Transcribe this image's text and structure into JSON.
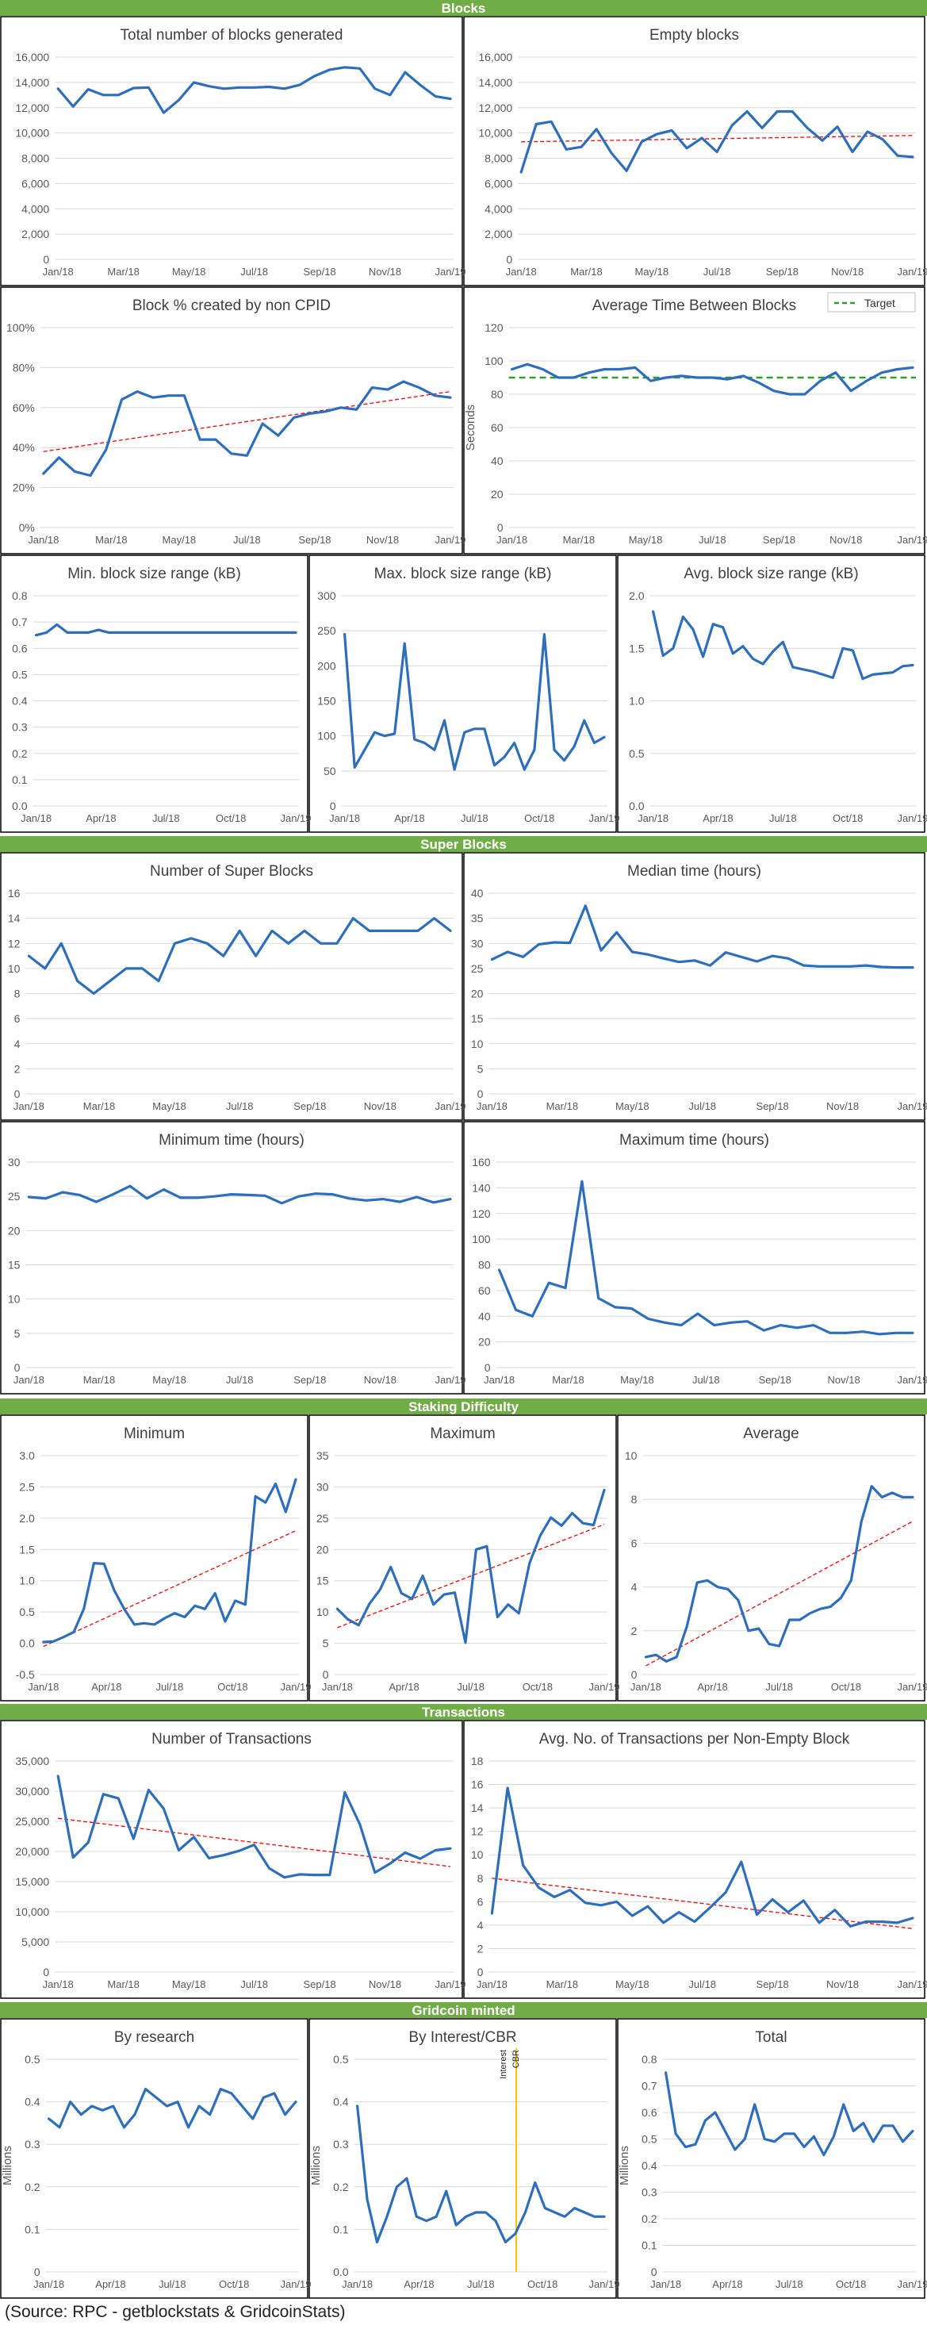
{
  "source_note": "(Source: RPC - getblockstats & GridcoinStats)",
  "colors": {
    "section_bar": "#70ad47",
    "section_text": "#ffffff",
    "series": "#2e6fbd",
    "trend": "#ff0000",
    "target": "#2ca02c",
    "marker": "#ffc000",
    "grid": "#d9d9d9",
    "axis_text": "#595959",
    "title_text": "#404040"
  },
  "sections": [
    {
      "title": "Blocks"
    },
    {
      "title": "Super Blocks"
    },
    {
      "title": "Staking Difficulty"
    },
    {
      "title": "Transactions"
    },
    {
      "title": "Gridcoin minted"
    }
  ],
  "chart_data": [
    {
      "type": "line",
      "section": "Blocks",
      "title": "Total number of blocks generated",
      "ylim": [
        0,
        16000
      ],
      "yticks": [
        "0",
        "2,000",
        "4,000",
        "6,000",
        "8,000",
        "10,000",
        "12,000",
        "14,000",
        "16,000"
      ],
      "xticks": [
        "Jan/18",
        "Mar/18",
        "May/18",
        "Jul/18",
        "Sep/18",
        "Nov/18",
        "Jan/19"
      ],
      "series": [
        {
          "values": [
            13500,
            12100,
            13450,
            13000,
            13000,
            13550,
            13600,
            11600,
            12600,
            14000,
            13700,
            13500,
            13600,
            13600,
            13650,
            13500,
            13800,
            14500,
            15000,
            15200,
            15100,
            13500,
            13000,
            14800,
            13800,
            12900,
            12700
          ]
        }
      ]
    },
    {
      "type": "line",
      "section": "Blocks",
      "title": "Empty blocks",
      "ylim": [
        0,
        16000
      ],
      "yticks": [
        "0",
        "2,000",
        "4,000",
        "6,000",
        "8,000",
        "10,000",
        "12,000",
        "14,000",
        "16,000"
      ],
      "xticks": [
        "Jan/18",
        "Mar/18",
        "May/18",
        "Jul/18",
        "Sep/18",
        "Nov/18",
        "Jan/19"
      ],
      "trend": [
        9300,
        9800
      ],
      "series": [
        {
          "values": [
            6900,
            10700,
            10900,
            8700,
            8900,
            10300,
            8400,
            7000,
            9300,
            9900,
            10200,
            8800,
            9600,
            8500,
            10600,
            11700,
            10400,
            11700,
            11700,
            10400,
            9400,
            10500,
            8500,
            10100,
            9500,
            8200,
            8100
          ]
        }
      ]
    },
    {
      "type": "line",
      "section": "Blocks",
      "title": "Block % created by non CPID",
      "ylim": [
        0,
        100
      ],
      "yticks": [
        "0%",
        "20%",
        "40%",
        "60%",
        "80%",
        "100%"
      ],
      "xticks": [
        "Jan/18",
        "Mar/18",
        "May/18",
        "Jul/18",
        "Sep/18",
        "Nov/18",
        "Jan/19"
      ],
      "trend": [
        38,
        68
      ],
      "series": [
        {
          "values": [
            27,
            35,
            28,
            26,
            39,
            64,
            68,
            65,
            66,
            66,
            44,
            44,
            37,
            36,
            52,
            46,
            55,
            57,
            58,
            60,
            59,
            70,
            69,
            73,
            70,
            66,
            65
          ]
        }
      ]
    },
    {
      "type": "line",
      "section": "Blocks",
      "title": "Average Time Between Blocks",
      "ylabel": "Seconds",
      "legend_entry": "Target",
      "legend_position": "top-right",
      "ylim": [
        0,
        120
      ],
      "yticks": [
        "0",
        "20",
        "40",
        "60",
        "80",
        "100",
        "120"
      ],
      "xticks": [
        "Jan/18",
        "Mar/18",
        "May/18",
        "Jul/18",
        "Sep/18",
        "Nov/18",
        "Jan/19"
      ],
      "target": 90,
      "series": [
        {
          "values": [
            95,
            98,
            95,
            90,
            90,
            93,
            95,
            95,
            96,
            88,
            90,
            91,
            90,
            90,
            89,
            91,
            87,
            82,
            80,
            80,
            88,
            93,
            82,
            88,
            93,
            95,
            96
          ]
        }
      ]
    },
    {
      "type": "line",
      "section": "Blocks",
      "title": "Min. block size range (kB)",
      "ylim": [
        0,
        0.8
      ],
      "yticks": [
        "0.0",
        "0.1",
        "0.2",
        "0.3",
        "0.4",
        "0.5",
        "0.6",
        "0.7",
        "0.8"
      ],
      "xticks": [
        "Jan/18",
        "Apr/18",
        "Jul/18",
        "Oct/18",
        "Jan/19"
      ],
      "series": [
        {
          "values": [
            0.65,
            0.66,
            0.69,
            0.66,
            0.66,
            0.66,
            0.67,
            0.66,
            0.66,
            0.66,
            0.66,
            0.66,
            0.66,
            0.66,
            0.66,
            0.66,
            0.66,
            0.66,
            0.66,
            0.66,
            0.66,
            0.66,
            0.66,
            0.66,
            0.66,
            0.66
          ]
        }
      ]
    },
    {
      "type": "line",
      "section": "Blocks",
      "title": "Max. block size range (kB)",
      "ylim": [
        0,
        300
      ],
      "yticks": [
        "0",
        "50",
        "100",
        "150",
        "200",
        "250",
        "300"
      ],
      "xticks": [
        "Jan/18",
        "Apr/18",
        "Jul/18",
        "Oct/18",
        "Jan/19"
      ],
      "series": [
        {
          "values": [
            245,
            55,
            80,
            105,
            100,
            103,
            232,
            95,
            90,
            80,
            122,
            52,
            105,
            110,
            110,
            58,
            70,
            90,
            52,
            80,
            245,
            80,
            65,
            85,
            122,
            90,
            98
          ]
        }
      ]
    },
    {
      "type": "line",
      "section": "Blocks",
      "title": "Avg. block size range (kB)",
      "ylim": [
        0,
        2.0
      ],
      "yticks": [
        "0.0",
        "0.5",
        "1.0",
        "1.5",
        "2.0"
      ],
      "xticks": [
        "Jan/18",
        "Apr/18",
        "Jul/18",
        "Oct/18",
        "Jan/19"
      ],
      "series": [
        {
          "values": [
            1.85,
            1.43,
            1.5,
            1.8,
            1.68,
            1.42,
            1.73,
            1.7,
            1.45,
            1.52,
            1.4,
            1.35,
            1.47,
            1.56,
            1.32,
            1.3,
            1.28,
            1.25,
            1.22,
            1.5,
            1.48,
            1.21,
            1.25,
            1.26,
            1.27,
            1.33,
            1.34
          ]
        }
      ]
    },
    {
      "type": "line",
      "section": "Super Blocks",
      "title": "Number of Super Blocks",
      "ylim": [
        0,
        16
      ],
      "yticks": [
        "0",
        "2",
        "4",
        "6",
        "8",
        "10",
        "12",
        "14",
        "16"
      ],
      "xticks": [
        "Jan/18",
        "Mar/18",
        "May/18",
        "Jul/18",
        "Sep/18",
        "Nov/18",
        "Jan/19"
      ],
      "series": [
        {
          "values": [
            11,
            10,
            12,
            9,
            8,
            9,
            10,
            10,
            9,
            12,
            12.4,
            12,
            11,
            13,
            11,
            13,
            12,
            13,
            12,
            12,
            14,
            13,
            13,
            13,
            13,
            14,
            13
          ]
        }
      ]
    },
    {
      "type": "line",
      "section": "Super Blocks",
      "title": "Median time (hours)",
      "ylim": [
        0,
        40
      ],
      "yticks": [
        "0",
        "5",
        "10",
        "15",
        "20",
        "25",
        "30",
        "35",
        "40"
      ],
      "xticks": [
        "Jan/18",
        "Mar/18",
        "May/18",
        "Jul/18",
        "Sep/18",
        "Nov/18",
        "Jan/19"
      ],
      "series": [
        {
          "values": [
            26.8,
            28.3,
            27.3,
            29.8,
            30.2,
            30.1,
            37.5,
            28.6,
            32.2,
            28.3,
            27.8,
            27.0,
            26.3,
            26.6,
            25.6,
            28.2,
            27.3,
            26.4,
            27.5,
            27.0,
            25.6,
            25.4,
            25.4,
            25.4,
            25.6,
            25.3,
            25.2,
            25.2
          ]
        }
      ]
    },
    {
      "type": "line",
      "section": "Super Blocks",
      "title": "Minimum time (hours)",
      "ylim": [
        0,
        30
      ],
      "yticks": [
        "0",
        "5",
        "10",
        "15",
        "20",
        "25",
        "30"
      ],
      "xticks": [
        "Jan/18",
        "Mar/18",
        "May/18",
        "Jul/18",
        "Sep/18",
        "Nov/18",
        "Jan/19"
      ],
      "series": [
        {
          "values": [
            24.9,
            24.7,
            25.6,
            25.2,
            24.2,
            25.3,
            26.5,
            24.7,
            26.0,
            24.8,
            24.8,
            25.0,
            25.3,
            25.2,
            25.1,
            24.0,
            25.0,
            25.4,
            25.3,
            24.7,
            24.4,
            24.6,
            24.2,
            24.9,
            24.1,
            24.6
          ]
        }
      ]
    },
    {
      "type": "line",
      "section": "Super Blocks",
      "title": "Maximum time (hours)",
      "ylim": [
        0,
        160
      ],
      "yticks": [
        "0",
        "20",
        "40",
        "60",
        "80",
        "100",
        "120",
        "140",
        "160"
      ],
      "xticks": [
        "Jan/18",
        "Mar/18",
        "May/18",
        "Jul/18",
        "Sep/18",
        "Nov/18",
        "Jan/19"
      ],
      "series": [
        {
          "values": [
            76,
            45,
            40,
            66,
            62,
            145,
            54,
            47,
            46,
            38,
            35,
            33,
            42,
            33,
            35,
            36,
            29,
            33,
            31,
            33,
            27,
            27,
            28,
            26,
            27,
            27
          ]
        }
      ]
    },
    {
      "type": "line",
      "section": "Staking Difficulty",
      "title": "Minimum",
      "ylim": [
        -0.5,
        3.0
      ],
      "yticks": [
        "-0.5",
        "0.0",
        "0.5",
        "1.0",
        "1.5",
        "2.0",
        "2.5",
        "3.0"
      ],
      "xticks": [
        "Jan/18",
        "Apr/18",
        "Jul/18",
        "Oct/18",
        "Jan/19"
      ],
      "trend": [
        -0.05,
        1.8
      ],
      "series": [
        {
          "values": [
            0.02,
            0.03,
            0.1,
            0.18,
            0.55,
            1.28,
            1.27,
            0.85,
            0.55,
            0.3,
            0.32,
            0.3,
            0.4,
            0.48,
            0.42,
            0.6,
            0.55,
            0.8,
            0.35,
            0.68,
            0.62,
            2.35,
            2.25,
            2.55,
            2.1,
            2.62
          ]
        }
      ]
    },
    {
      "type": "line",
      "section": "Staking Difficulty",
      "title": "Maximum",
      "ylim": [
        0,
        35
      ],
      "yticks": [
        "0",
        "5",
        "10",
        "15",
        "20",
        "25",
        "30",
        "35"
      ],
      "xticks": [
        "Jan/18",
        "Apr/18",
        "Jul/18",
        "Oct/18",
        "Jan/19"
      ],
      "trend": [
        7.5,
        24
      ],
      "series": [
        {
          "values": [
            10.5,
            8.8,
            7.9,
            11.3,
            13.6,
            17.2,
            13.0,
            12.1,
            15.8,
            11.2,
            12.8,
            13.1,
            5.1,
            20.0,
            20.5,
            9.2,
            11.2,
            9.8,
            17.8,
            22.2,
            25.1,
            23.8,
            25.8,
            24.2,
            23.9,
            29.5
          ]
        }
      ]
    },
    {
      "type": "line",
      "section": "Staking Difficulty",
      "title": "Average",
      "ylim": [
        0,
        10
      ],
      "yticks": [
        "0",
        "2",
        "4",
        "6",
        "8",
        "10"
      ],
      "xticks": [
        "Jan/18",
        "Apr/18",
        "Jul/18",
        "Oct/18",
        "Jan/19"
      ],
      "trend": [
        0.4,
        7.0
      ],
      "series": [
        {
          "values": [
            0.8,
            0.9,
            0.6,
            0.8,
            2.2,
            4.2,
            4.3,
            4.0,
            3.9,
            3.4,
            2.0,
            2.1,
            1.4,
            1.3,
            2.5,
            2.5,
            2.8,
            3.0,
            3.1,
            3.5,
            4.3,
            7.0,
            8.6,
            8.1,
            8.3,
            8.1,
            8.1
          ]
        }
      ]
    },
    {
      "type": "line",
      "section": "Transactions",
      "title": "Number of Transactions",
      "ylim": [
        0,
        35000
      ],
      "yticks": [
        "0",
        "5,000",
        "10,000",
        "15,000",
        "20,000",
        "25,000",
        "30,000",
        "35,000"
      ],
      "xticks": [
        "Jan/18",
        "Mar/18",
        "May/18",
        "Jul/18",
        "Sep/18",
        "Nov/18",
        "Jan/19"
      ],
      "trend": [
        25500,
        17500
      ],
      "series": [
        {
          "values": [
            32500,
            19000,
            21500,
            29500,
            28800,
            22100,
            30200,
            27100,
            20200,
            22400,
            18900,
            19400,
            20100,
            21100,
            17200,
            15700,
            16200,
            16100,
            16100,
            29800,
            24500,
            16500,
            18000,
            19800,
            18800,
            20200,
            20500
          ]
        }
      ]
    },
    {
      "type": "line",
      "section": "Transactions",
      "title": "Avg. No. of Transactions per Non-Empty Block",
      "ylim": [
        0,
        18
      ],
      "yticks": [
        "0",
        "2",
        "4",
        "6",
        "8",
        "10",
        "12",
        "14",
        "16",
        "18"
      ],
      "xticks": [
        "Jan/18",
        "Mar/18",
        "May/18",
        "Jul/18",
        "Sep/18",
        "Nov/18",
        "Jan/19"
      ],
      "trend": [
        8.0,
        3.7
      ],
      "series": [
        {
          "values": [
            5.0,
            15.7,
            9.1,
            7.2,
            6.4,
            7.0,
            5.9,
            5.7,
            6.0,
            4.8,
            5.6,
            4.2,
            5.1,
            4.3,
            5.5,
            6.8,
            9.4,
            4.9,
            6.2,
            5.1,
            6.1,
            4.2,
            5.3,
            3.9,
            4.3,
            4.3,
            4.2,
            4.6
          ]
        }
      ]
    },
    {
      "type": "line",
      "section": "Gridcoin minted",
      "title": "By research",
      "ylabel": "Millions",
      "ylim": [
        0,
        0.5
      ],
      "yticks": [
        "0",
        "0.1",
        "0.2",
        "0.3",
        "0.4",
        "0.5"
      ],
      "xticks": [
        "Jan/18",
        "Apr/18",
        "Jul/18",
        "Oct/18",
        "Jan/19"
      ],
      "series": [
        {
          "values": [
            0.36,
            0.34,
            0.4,
            0.37,
            0.39,
            0.38,
            0.39,
            0.34,
            0.37,
            0.43,
            0.41,
            0.39,
            0.4,
            0.34,
            0.39,
            0.37,
            0.43,
            0.42,
            0.39,
            0.36,
            0.41,
            0.42,
            0.37,
            0.4
          ]
        }
      ]
    },
    {
      "type": "line",
      "section": "Gridcoin minted",
      "title": "By Interest/CBR",
      "ylabel": "Millions",
      "ylim": [
        0,
        0.5
      ],
      "yticks": [
        "0.0",
        "0.1",
        "0.2",
        "0.3",
        "0.4",
        "0.5"
      ],
      "xticks": [
        "Jan/18",
        "Apr/18",
        "Jul/18",
        "Oct/18",
        "Jan/19"
      ],
      "marker_labels": [
        "Interest",
        "CBR"
      ],
      "series": [
        {
          "values": [
            0.39,
            0.17,
            0.07,
            0.13,
            0.2,
            0.22,
            0.13,
            0.12,
            0.13,
            0.19,
            0.11,
            0.13,
            0.14,
            0.14,
            0.12,
            0.07,
            0.09,
            0.14,
            0.21,
            0.15,
            0.14,
            0.13,
            0.15,
            0.14,
            0.13,
            0.13
          ]
        }
      ]
    },
    {
      "type": "line",
      "section": "Gridcoin minted",
      "title": "Total",
      "ylabel": "Millions",
      "ylim": [
        0,
        0.8
      ],
      "yticks": [
        "0",
        "0.1",
        "0.2",
        "0.3",
        "0.4",
        "0.5",
        "0.6",
        "0.7",
        "0.8"
      ],
      "xticks": [
        "Jan/18",
        "Apr/18",
        "Jul/18",
        "Oct/18",
        "Jan/19"
      ],
      "series": [
        {
          "values": [
            0.75,
            0.52,
            0.47,
            0.48,
            0.57,
            0.6,
            0.53,
            0.46,
            0.5,
            0.63,
            0.5,
            0.49,
            0.52,
            0.52,
            0.47,
            0.51,
            0.44,
            0.51,
            0.63,
            0.53,
            0.56,
            0.49,
            0.55,
            0.55,
            0.49,
            0.53
          ]
        }
      ]
    }
  ]
}
